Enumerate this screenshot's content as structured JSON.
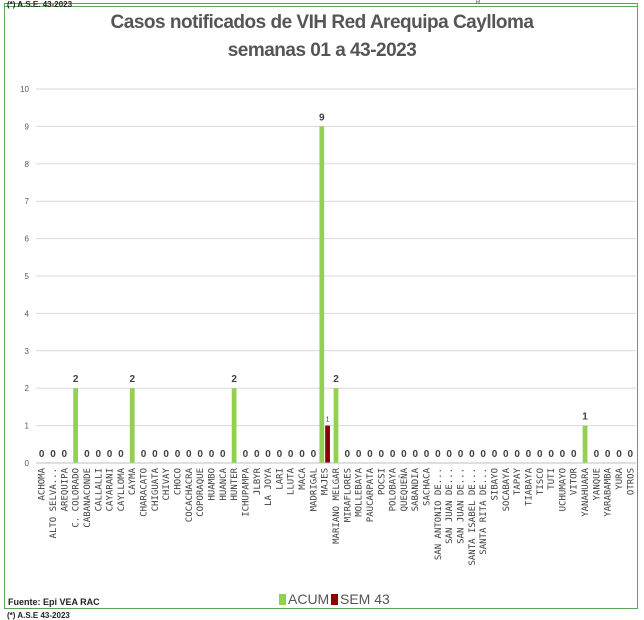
{
  "header": {
    "note_top": "(*) A.S.E. 43-2023",
    "note_bottom": "(*) A.S.E 43-2023",
    "tiny_mark": "R"
  },
  "source": "Fuente: Epi VEA RAC",
  "colors": {
    "acum": "#92d050",
    "sem": "#8b0000",
    "grid": "#d9d9d9",
    "frame": "#5aa55a"
  },
  "chart_data": {
    "type": "bar",
    "title": "Casos notificados de VIH Red Arequipa Caylloma",
    "subtitle": "semanas 01 a 43-2023",
    "xlabel": "",
    "ylabel": "",
    "ylim": [
      0,
      10
    ],
    "yticks": [
      "0",
      "1",
      "2",
      "3",
      "4",
      "5",
      "6",
      "7",
      "8",
      "9",
      "10"
    ],
    "grid": true,
    "legend_position": "bottom",
    "categories": [
      "ACHOMA",
      "ALTO SELVA...",
      "AREQUIPA",
      "C. COLORADO",
      "CABANACONDE",
      "CALLALLI",
      "CAYARANI",
      "CAYLLOMA",
      "CAYMA",
      "CHARACATO",
      "CHIGUATA",
      "CHIVAY",
      "CHOCO",
      "COCACHACRA",
      "COPORAQUE",
      "HUAMBO",
      "HUANCA",
      "HUNTER",
      "ICHUPAMPA",
      "JLBYR",
      "LA JOYA",
      "LARI",
      "LLUTA",
      "MACA",
      "MADRIGAL",
      "MAJES",
      "MARIANO MELGAR",
      "MIRAFLORES",
      "MOLLEBAYA",
      "PAUCARPATA",
      "POCSI",
      "POLOBAYA",
      "QUEQUEÑA",
      "SABANDIA",
      "SACHACA",
      "SAN ANTONIO DE...",
      "SAN JUAN DE...",
      "SAN JUAN DE...",
      "SANTA ISABEL DE...",
      "SANTA RITA DE...",
      "SIBAYO",
      "SOCABAYA",
      "TAPAY",
      "TIABAYA",
      "TISCO",
      "TUTI",
      "UCHUMAYO",
      "VITOR",
      "YANAHUARA",
      "YANQUE",
      "YARABAMBA",
      "YURA",
      "OTROS"
    ],
    "series": [
      {
        "name": "ACUM",
        "values": [
          0,
          0,
          0,
          2,
          0,
          0,
          0,
          0,
          2,
          0,
          0,
          0,
          0,
          0,
          0,
          0,
          0,
          2,
          0,
          0,
          0,
          0,
          0,
          0,
          0,
          9,
          2,
          0,
          0,
          0,
          0,
          0,
          0,
          0,
          0,
          0,
          0,
          0,
          0,
          0,
          0,
          0,
          0,
          0,
          0,
          0,
          0,
          0,
          1,
          0,
          0,
          0,
          0
        ]
      },
      {
        "name": "SEM 43",
        "values": [
          null,
          null,
          null,
          null,
          null,
          null,
          null,
          null,
          null,
          null,
          null,
          null,
          null,
          null,
          null,
          null,
          null,
          null,
          null,
          null,
          null,
          null,
          null,
          null,
          null,
          1,
          null,
          null,
          null,
          null,
          null,
          null,
          null,
          null,
          null,
          null,
          null,
          null,
          null,
          null,
          null,
          null,
          null,
          null,
          null,
          null,
          null,
          null,
          null,
          null,
          null,
          null,
          null
        ]
      }
    ]
  }
}
